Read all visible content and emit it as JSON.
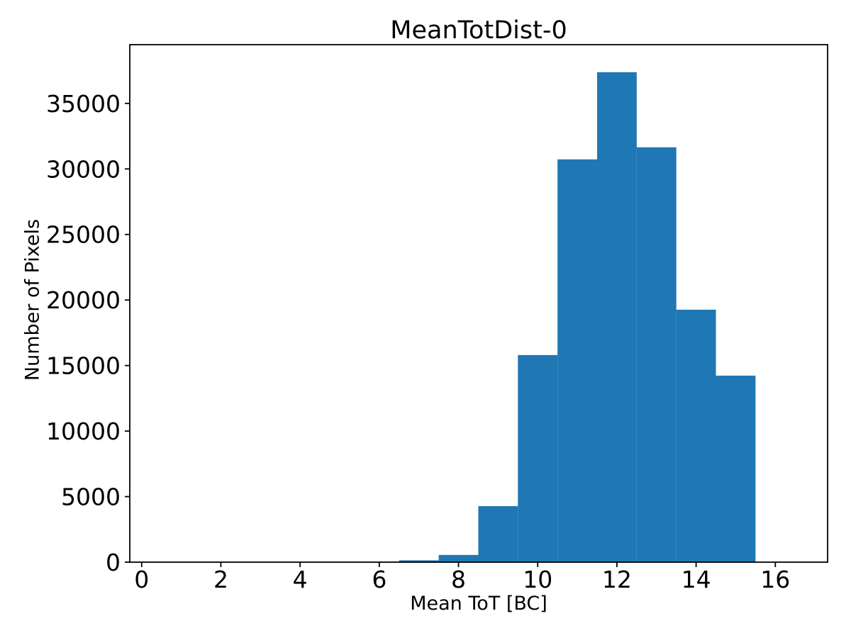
{
  "title": "MeanTotDist-0",
  "colors": {
    "bar": "#1f77b4",
    "axis": "#000000",
    "background": "#ffffff",
    "text": "#000000"
  },
  "chart_data": {
    "type": "bar",
    "subtype": "histogram",
    "title": "MeanTotDist-0",
    "xlabel": "Mean ToT [BC]",
    "ylabel": "Number of Pixels",
    "bin_edges": [
      6.5,
      7.5,
      8.5,
      9.5,
      10.5,
      11.5,
      12.5,
      13.5,
      14.5,
      15.5
    ],
    "counts": [
      140,
      550,
      4270,
      15800,
      30730,
      37380,
      31650,
      19260,
      14230
    ],
    "xticks": [
      0,
      2,
      4,
      6,
      8,
      10,
      12,
      14,
      16
    ],
    "yticks": [
      0,
      5000,
      10000,
      15000,
      20000,
      25000,
      30000,
      35000
    ],
    "xlim": [
      -0.3,
      17.32
    ],
    "ylim": [
      0,
      39480
    ],
    "grid": false,
    "legend": null,
    "bar_color": "#1f77b4"
  }
}
